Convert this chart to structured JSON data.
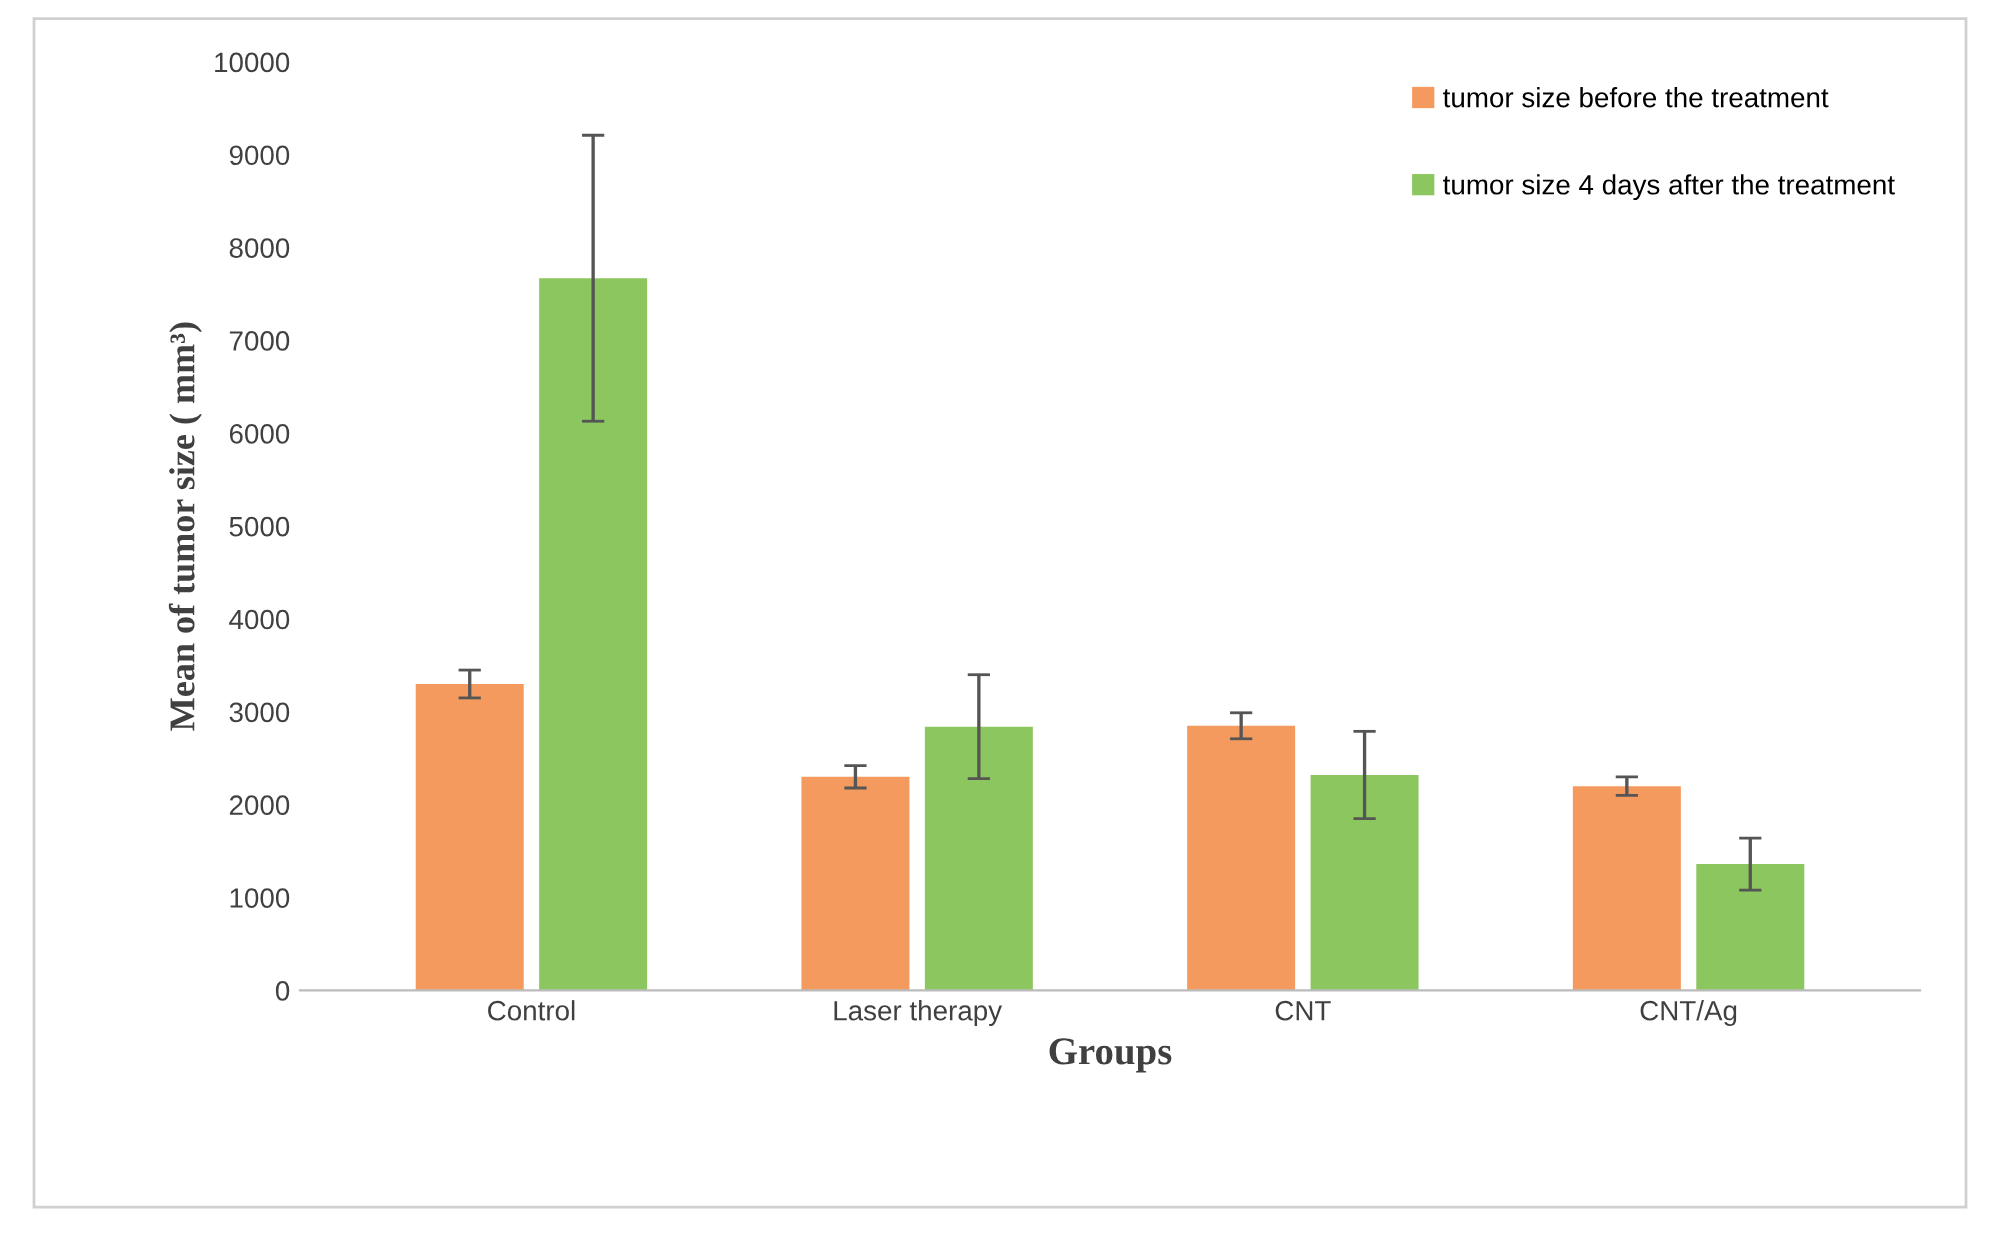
{
  "chart_data": {
    "type": "bar",
    "xlabel": "Groups",
    "ylabel": "Mean of tumor size ( mm³)",
    "categories": [
      "Control",
      "Laser therapy",
      "CNT",
      "CNT/Ag"
    ],
    "series": [
      {
        "name": "tumor size before the treatment",
        "color": "#f49a5e",
        "values": [
          3300,
          2300,
          2850,
          2200
        ],
        "errors": [
          150,
          120,
          140,
          100
        ]
      },
      {
        "name": "tumor size 4 days after the treatment",
        "color": "#8cc65f",
        "values": [
          7670,
          2840,
          2320,
          1360
        ],
        "errors": [
          1540,
          560,
          470,
          280
        ]
      }
    ],
    "ylim": [
      0,
      10000
    ],
    "yticks": [
      0,
      1000,
      2000,
      3000,
      4000,
      5000,
      6000,
      7000,
      8000,
      9000,
      10000
    ],
    "grid": false,
    "legend": "top right"
  }
}
